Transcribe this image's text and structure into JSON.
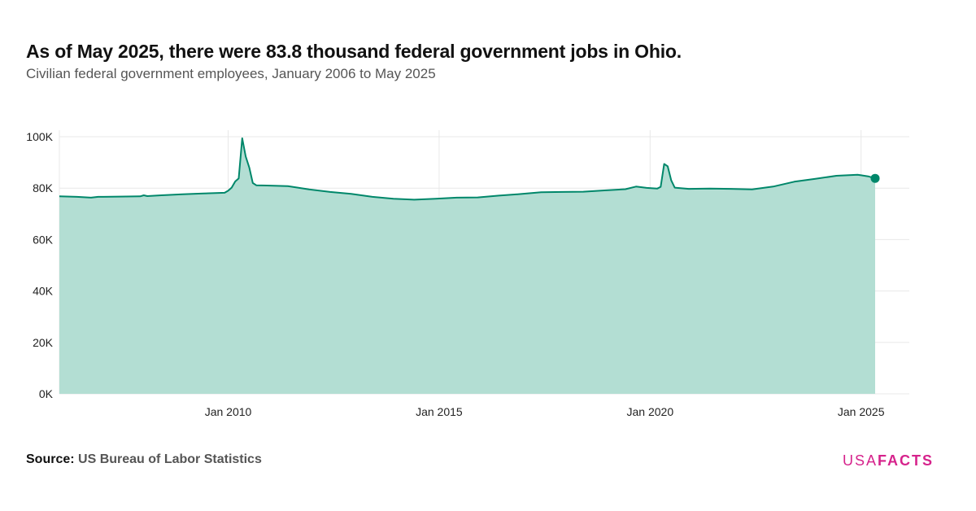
{
  "header": {
    "title": "As of May 2025, there were 83.8 thousand federal government jobs in Ohio.",
    "subtitle": "Civilian federal government employees, January 2006 to May 2025"
  },
  "footer": {
    "source_label": "Source:",
    "source_value": "US Bureau of Labor Statistics",
    "logo_usa": "USA",
    "logo_facts": "FACTS"
  },
  "colors": {
    "line": "#00876a",
    "area": "#b3ded3",
    "grid": "#e8e8e8",
    "logo": "#d6238c"
  },
  "chart_data": {
    "type": "area",
    "x_start": "2006-01",
    "x_end": "2025-05",
    "ylim": [
      0,
      100000
    ],
    "y_ticks": [
      0,
      20000,
      40000,
      60000,
      80000,
      100000
    ],
    "y_tick_labels": [
      "0K",
      "20K",
      "40K",
      "60K",
      "80K",
      "100K"
    ],
    "x_ticks": [
      "2010-01",
      "2015-01",
      "2020-01",
      "2025-01"
    ],
    "x_tick_labels": [
      "Jan 2010",
      "Jan 2015",
      "Jan 2020",
      "Jan 2025"
    ],
    "grid": true,
    "last_point_marker": true,
    "points": [
      [
        "2006-01",
        76.8
      ],
      [
        "2006-06",
        76.6
      ],
      [
        "2006-10",
        76.3
      ],
      [
        "2006-12",
        76.6
      ],
      [
        "2007-06",
        76.7
      ],
      [
        "2007-12",
        76.8
      ],
      [
        "2008-01",
        77.2
      ],
      [
        "2008-02",
        76.9
      ],
      [
        "2008-06",
        77.2
      ],
      [
        "2008-12",
        77.6
      ],
      [
        "2009-06",
        77.9
      ],
      [
        "2009-12",
        78.2
      ],
      [
        "2010-01",
        79.0
      ],
      [
        "2010-02",
        80.2
      ],
      [
        "2010-03",
        82.6
      ],
      [
        "2010-04",
        83.8
      ],
      [
        "2010-05",
        99.4
      ],
      [
        "2010-06",
        92.3
      ],
      [
        "2010-07",
        88.0
      ],
      [
        "2010-08",
        82.0
      ],
      [
        "2010-09",
        81.1
      ],
      [
        "2010-12",
        81.0
      ],
      [
        "2011-06",
        80.8
      ],
      [
        "2011-12",
        79.5
      ],
      [
        "2012-06",
        78.5
      ],
      [
        "2012-12",
        77.8
      ],
      [
        "2013-06",
        76.6
      ],
      [
        "2013-12",
        75.9
      ],
      [
        "2014-06",
        75.5
      ],
      [
        "2014-12",
        75.9
      ],
      [
        "2015-06",
        76.3
      ],
      [
        "2015-12",
        76.4
      ],
      [
        "2016-06",
        77.1
      ],
      [
        "2016-12",
        77.7
      ],
      [
        "2017-06",
        78.4
      ],
      [
        "2017-12",
        78.5
      ],
      [
        "2018-06",
        78.6
      ],
      [
        "2018-12",
        79.1
      ],
      [
        "2019-06",
        79.6
      ],
      [
        "2019-09",
        80.6
      ],
      [
        "2019-12",
        80.1
      ],
      [
        "2020-03",
        79.8
      ],
      [
        "2020-04",
        80.5
      ],
      [
        "2020-05",
        89.4
      ],
      [
        "2020-06",
        88.5
      ],
      [
        "2020-07",
        83.0
      ],
      [
        "2020-08",
        80.2
      ],
      [
        "2020-12",
        79.7
      ],
      [
        "2021-06",
        79.8
      ],
      [
        "2021-12",
        79.7
      ],
      [
        "2022-06",
        79.5
      ],
      [
        "2022-12",
        80.6
      ],
      [
        "2023-06",
        82.5
      ],
      [
        "2023-12",
        83.6
      ],
      [
        "2024-06",
        84.8
      ],
      [
        "2024-12",
        85.2
      ],
      [
        "2025-01",
        85.0
      ],
      [
        "2025-03",
        84.6
      ],
      [
        "2025-05",
        83.8
      ]
    ]
  }
}
